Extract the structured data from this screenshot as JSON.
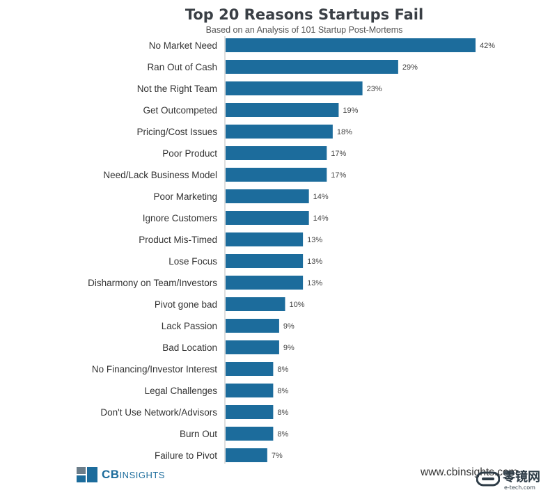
{
  "chart_data": {
    "type": "bar",
    "orientation": "horizontal",
    "title": "Top 20 Reasons Startups Fail",
    "subtitle": "Based on an Analysis of 101 Startup Post-Mortems",
    "categories": [
      "No Market Need",
      "Ran Out of Cash",
      "Not the Right Team",
      "Get Outcompeted",
      "Pricing/Cost Issues",
      "Poor Product",
      "Need/Lack Business Model",
      "Poor Marketing",
      "Ignore Customers",
      "Product Mis-Timed",
      "Lose Focus",
      "Disharmony on Team/Investors",
      "Pivot gone bad",
      "Lack Passion",
      "Bad Location",
      "No Financing/Investor Interest",
      "Legal Challenges",
      "Don't Use Network/Advisors",
      "Burn Out",
      "Failure to Pivot"
    ],
    "values": [
      42,
      29,
      23,
      19,
      18,
      17,
      17,
      14,
      14,
      13,
      13,
      13,
      10,
      9,
      9,
      8,
      8,
      8,
      8,
      7
    ],
    "value_labels": [
      "42%",
      "29%",
      "23%",
      "19%",
      "18%",
      "17%",
      "17%",
      "14%",
      "14%",
      "13%",
      "13%",
      "13%",
      "10%",
      "9%",
      "9%",
      "8%",
      "8%",
      "8%",
      "8%",
      "7%"
    ],
    "xlim": [
      0,
      42
    ],
    "grid": false,
    "legend": "none",
    "bar_color": "#1c6c9c"
  },
  "footer": {
    "logo_text": "CB",
    "logo_sub": "INSIGHTS",
    "website": "www.cbinsights.com",
    "watermark_text": "零镜网",
    "watermark_url": "e-tech.com"
  }
}
